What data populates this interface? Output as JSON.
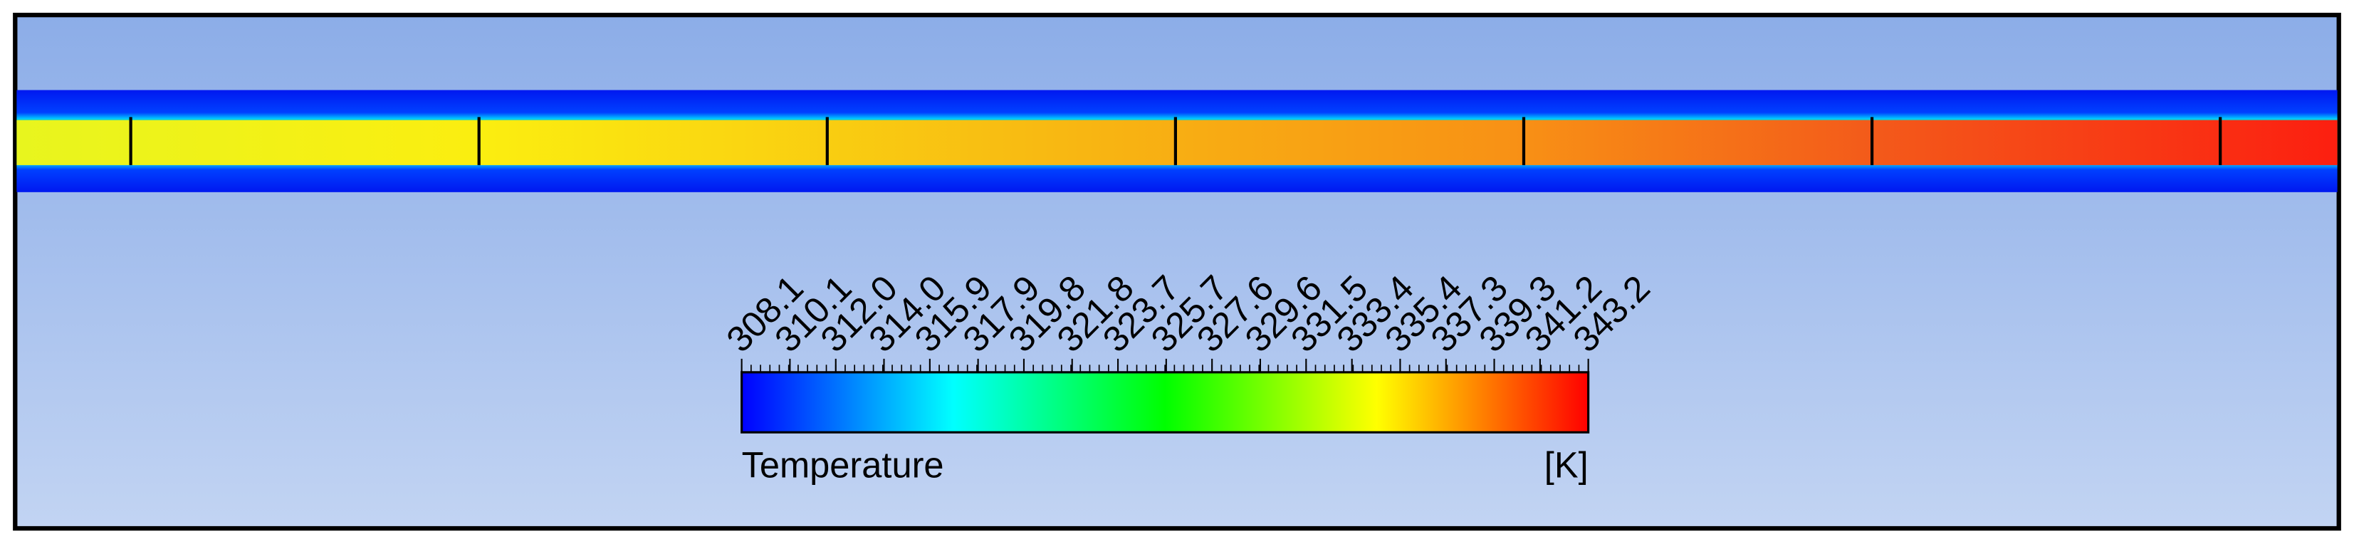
{
  "chart_data": {
    "type": "colorbar",
    "label": "Temperature",
    "unit": "[K]",
    "clim": [
      308.1,
      343.2
    ],
    "ticks": [
      308.1,
      310.1,
      {
        "value": 312,
        "label": "312.0"
      },
      {
        "value": 314,
        "label": "314.0"
      },
      315.9,
      317.9,
      319.8,
      321.8,
      323.7,
      325.7,
      327.6,
      329.6,
      331.5,
      333.4,
      335.4,
      337.3,
      339.3,
      341.2,
      343.2
    ],
    "colormap": [
      "#0000ff",
      "#00ffff",
      "#00ff00",
      "#ffff00",
      "#ff0000"
    ]
  }
}
